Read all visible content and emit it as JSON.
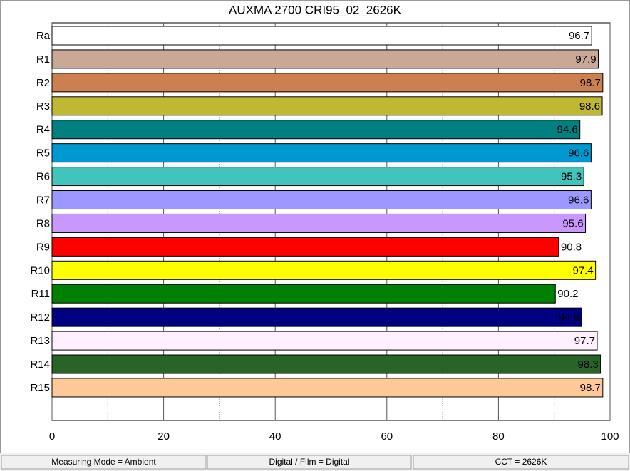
{
  "chart_data": {
    "type": "hbar",
    "title": "AUXMA 2700 CRI95_02_2626K",
    "categories": [
      "Ra",
      "R1",
      "R2",
      "R3",
      "R4",
      "R5",
      "R6",
      "R7",
      "R8",
      "R9",
      "R10",
      "R11",
      "R12",
      "R13",
      "R14",
      "R15"
    ],
    "values": [
      96.7,
      97.9,
      98.7,
      98.6,
      94.6,
      96.6,
      95.3,
      96.6,
      95.6,
      90.8,
      97.4,
      90.2,
      94.9,
      97.7,
      98.3,
      98.7
    ],
    "colors": [
      "#ffffff",
      "#c9a898",
      "#cc8050",
      "#c0b832",
      "#008080",
      "#0098d0",
      "#40c4bc",
      "#9c98ff",
      "#c898ff",
      "#ff0000",
      "#ffff00",
      "#008000",
      "#000080",
      "#fff0ff",
      "#286428",
      "#ffc898"
    ],
    "xlim": [
      0,
      100
    ],
    "xticks": [
      0,
      20,
      40,
      60,
      80,
      100
    ],
    "xticks_minor": [
      10,
      30,
      50,
      70,
      90
    ],
    "grid": true
  },
  "status_bar": [
    "Measuring Mode = Ambient",
    "Digital / Film = Digital",
    "CCT = 2626K"
  ]
}
